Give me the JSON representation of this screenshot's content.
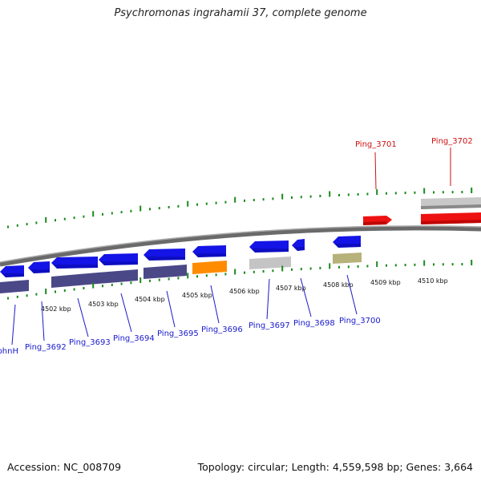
{
  "title": "Psychromonas ingrahamii 37, complete genome",
  "accession": "Accession: NC_008709",
  "topology": "Topology: circular; Length: 4,559,598 bp; Genes: 3,664",
  "colors": {
    "forward_gene": "#1414e6",
    "forward_cds": "#4b4888",
    "highlight_gene": "#ee1111",
    "orange_gene": "#ff8c00",
    "grey_gene": "#bdbdbd",
    "khaki_gene": "#b7b17a",
    "tick_green": "#1a8a1a",
    "label_blue": "#1a1acc",
    "label_red": "#cc1111",
    "backbone": "#888888"
  },
  "kbp_labels": [
    "4502 kbp",
    "4503 kbp",
    "4504 kbp",
    "4505 kbp",
    "4506 kbp",
    "4507 kbp",
    "4508 kbp",
    "4509 kbp",
    "4510 kbp"
  ],
  "gene_labels_bottom": [
    "phnH",
    "Ping_3692",
    "Ping_3693",
    "Ping_3694",
    "Ping_3695",
    "Ping_3696",
    "Ping_3697",
    "Ping_3698",
    "Ping_3700"
  ],
  "gene_labels_top": [
    "Ping_3701",
    "Ping_3702"
  ]
}
